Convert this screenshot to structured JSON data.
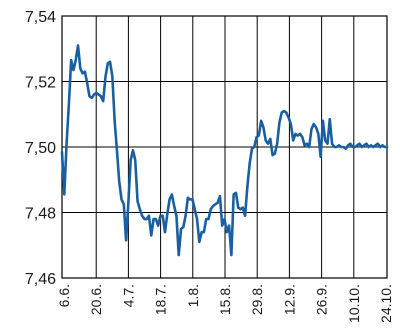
{
  "chart_data": {
    "type": "line",
    "title": "",
    "xlabel": "",
    "ylabel": "",
    "ylim": [
      7.46,
      7.54
    ],
    "y_ticks": [
      "7,46",
      "7,48",
      "7,50",
      "7,52",
      "7,54"
    ],
    "x_tick_labels": [
      "6.6.",
      "20.6.",
      "4.7.",
      "18.7.",
      "1.8.",
      "15.8.",
      "29.8.",
      "12.9.",
      "26.9.",
      "10.10.",
      "24.10."
    ],
    "grid": true,
    "series": [
      {
        "color": "#1a5fa0",
        "x": [
          0,
          1,
          2,
          3,
          4,
          5,
          6,
          7,
          8,
          9,
          10,
          11,
          12,
          13,
          14,
          15,
          16,
          17,
          18,
          19,
          20,
          21,
          22,
          23,
          24,
          25,
          26,
          27,
          28,
          29,
          30,
          31,
          32,
          33,
          34,
          35,
          36,
          37,
          38,
          39,
          40,
          41,
          42,
          43,
          44,
          45,
          46,
          47,
          48,
          49,
          50,
          51,
          52,
          53,
          54,
          55,
          56,
          57,
          58,
          59,
          60,
          61,
          62,
          63,
          64,
          65,
          66,
          67,
          68,
          69,
          70,
          71,
          72,
          73,
          74,
          75,
          76,
          77,
          78,
          79,
          80,
          81,
          82,
          83,
          84,
          85,
          86,
          87,
          88,
          89,
          90,
          91,
          92,
          93,
          94,
          95,
          96,
          97,
          98,
          99,
          100,
          101,
          102,
          103,
          104,
          105,
          106,
          107,
          108,
          109,
          110,
          111,
          112,
          113,
          114,
          115,
          116,
          117,
          118,
          119,
          120,
          121,
          122,
          123,
          124,
          125,
          126,
          127,
          128,
          129,
          130,
          131,
          132,
          133,
          134,
          135,
          136,
          137,
          138,
          139,
          140,
          141,
          142
        ],
        "y": [
          7.4985,
          7.4855,
          7.501,
          7.513,
          7.5265,
          7.5235,
          7.5265,
          7.531,
          7.524,
          7.5225,
          7.523,
          7.5195,
          7.5155,
          7.515,
          7.516,
          7.5165,
          7.516,
          7.5155,
          7.514,
          7.5215,
          7.5255,
          7.526,
          7.5215,
          7.508,
          7.499,
          7.4895,
          7.484,
          7.4825,
          7.4715,
          7.483,
          7.496,
          7.499,
          7.496,
          7.4835,
          7.481,
          7.479,
          7.478,
          7.478,
          7.479,
          7.473,
          7.478,
          7.478,
          7.476,
          7.479,
          7.479,
          7.474,
          7.4795,
          7.484,
          7.4855,
          7.482,
          7.479,
          7.467,
          7.475,
          7.4755,
          7.479,
          7.4845,
          7.484,
          7.484,
          7.481,
          7.478,
          7.471,
          7.474,
          7.474,
          7.478,
          7.478,
          7.481,
          7.482,
          7.4825,
          7.483,
          7.485,
          7.476,
          7.478,
          7.474,
          7.476,
          7.467,
          7.4855,
          7.486,
          7.4815,
          7.481,
          7.4815,
          7.479,
          7.488,
          7.495,
          7.4995,
          7.5,
          7.503,
          7.5035,
          7.508,
          7.506,
          7.502,
          7.501,
          7.5025,
          7.4975,
          7.498,
          7.501,
          7.5075,
          7.5105,
          7.511,
          7.5105,
          7.509,
          7.507,
          7.502,
          7.504,
          7.5035,
          7.504,
          7.503,
          7.5005,
          7.501,
          7.5,
          7.5055,
          7.507,
          7.506,
          7.504,
          7.497,
          7.508,
          7.502,
          7.501,
          7.5085,
          7.501,
          7.5,
          7.5,
          7.5005,
          7.5,
          7.5,
          7.4995,
          7.5005,
          7.501,
          7.5,
          7.5,
          7.5005,
          7.501,
          7.5,
          7.5005,
          7.501,
          7.5,
          7.5005,
          7.5,
          7.5005,
          7.501,
          7.5,
          7.5005,
          7.5,
          7.5
        ]
      }
    ]
  }
}
